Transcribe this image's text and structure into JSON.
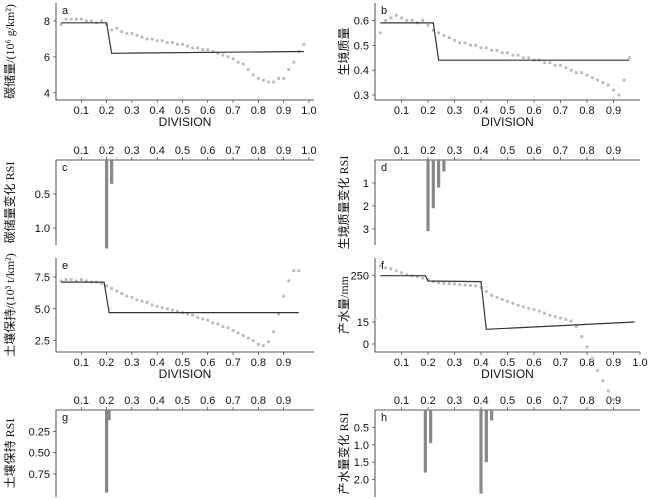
{
  "chart_data": [
    {
      "panel": "a",
      "type": "scatter-line",
      "xlabel": "DIVISION",
      "ylabel": "碳储量/(10⁶ g/km²)",
      "xticks": [
        "0.1",
        "0.2",
        "0.3",
        "0.4",
        "0.5",
        "0.6",
        "0.7",
        "0.8",
        "0.9",
        "1.0"
      ],
      "yticks": [
        "4",
        "6",
        "8"
      ],
      "ylim": [
        3.6,
        9.0
      ],
      "points": [
        [
          0.02,
          7.8
        ],
        [
          0.04,
          8.1
        ],
        [
          0.06,
          8.1
        ],
        [
          0.08,
          8.1
        ],
        [
          0.1,
          8.1
        ],
        [
          0.12,
          8.0
        ],
        [
          0.14,
          8.0
        ],
        [
          0.16,
          7.9
        ],
        [
          0.18,
          8.0
        ],
        [
          0.2,
          7.8
        ],
        [
          0.22,
          7.5
        ],
        [
          0.24,
          7.6
        ],
        [
          0.26,
          7.4
        ],
        [
          0.28,
          7.3
        ],
        [
          0.3,
          7.3
        ],
        [
          0.32,
          7.2
        ],
        [
          0.34,
          7.1
        ],
        [
          0.36,
          7.0
        ],
        [
          0.38,
          7.0
        ],
        [
          0.4,
          6.9
        ],
        [
          0.42,
          6.9
        ],
        [
          0.44,
          6.8
        ],
        [
          0.46,
          6.8
        ],
        [
          0.48,
          6.7
        ],
        [
          0.5,
          6.7
        ],
        [
          0.52,
          6.6
        ],
        [
          0.54,
          6.5
        ],
        [
          0.56,
          6.5
        ],
        [
          0.58,
          6.4
        ],
        [
          0.6,
          6.4
        ],
        [
          0.62,
          6.3
        ],
        [
          0.64,
          6.2
        ],
        [
          0.66,
          6.1
        ],
        [
          0.68,
          6.0
        ],
        [
          0.7,
          5.9
        ],
        [
          0.72,
          5.7
        ],
        [
          0.74,
          5.6
        ],
        [
          0.76,
          5.3
        ],
        [
          0.78,
          5.0
        ],
        [
          0.8,
          4.8
        ],
        [
          0.82,
          4.7
        ],
        [
          0.84,
          4.6
        ],
        [
          0.86,
          4.6
        ],
        [
          0.88,
          4.8
        ],
        [
          0.9,
          4.8
        ],
        [
          0.92,
          5.3
        ],
        [
          0.94,
          5.7
        ],
        [
          0.96,
          6.3
        ],
        [
          0.98,
          6.7
        ]
      ],
      "fit": [
        [
          0.02,
          7.9
        ],
        [
          0.2,
          7.9
        ],
        [
          0.22,
          6.2
        ],
        [
          0.98,
          6.3
        ]
      ]
    },
    {
      "panel": "b",
      "type": "scatter-line",
      "xlabel": "DIVISION",
      "ylabel": "生境质量",
      "xticks": [
        "0.1",
        "0.2",
        "0.3",
        "0.4",
        "0.5",
        "0.6",
        "0.7",
        "0.8",
        "0.9"
      ],
      "yticks": [
        "0.3",
        "0.4",
        "0.5",
        "0.6"
      ],
      "ylim": [
        0.28,
        0.67
      ],
      "points": [
        [
          0.02,
          0.55
        ],
        [
          0.04,
          0.6
        ],
        [
          0.06,
          0.61
        ],
        [
          0.08,
          0.62
        ],
        [
          0.1,
          0.61
        ],
        [
          0.12,
          0.6
        ],
        [
          0.14,
          0.6
        ],
        [
          0.16,
          0.59
        ],
        [
          0.18,
          0.6
        ],
        [
          0.2,
          0.58
        ],
        [
          0.22,
          0.56
        ],
        [
          0.24,
          0.55
        ],
        [
          0.26,
          0.54
        ],
        [
          0.28,
          0.53
        ],
        [
          0.3,
          0.52
        ],
        [
          0.32,
          0.51
        ],
        [
          0.34,
          0.51
        ],
        [
          0.36,
          0.5
        ],
        [
          0.38,
          0.5
        ],
        [
          0.4,
          0.49
        ],
        [
          0.42,
          0.49
        ],
        [
          0.44,
          0.48
        ],
        [
          0.46,
          0.48
        ],
        [
          0.48,
          0.47
        ],
        [
          0.5,
          0.47
        ],
        [
          0.52,
          0.46
        ],
        [
          0.54,
          0.46
        ],
        [
          0.56,
          0.45
        ],
        [
          0.58,
          0.45
        ],
        [
          0.6,
          0.44
        ],
        [
          0.62,
          0.44
        ],
        [
          0.64,
          0.43
        ],
        [
          0.66,
          0.43
        ],
        [
          0.68,
          0.42
        ],
        [
          0.7,
          0.42
        ],
        [
          0.72,
          0.41
        ],
        [
          0.74,
          0.4
        ],
        [
          0.76,
          0.39
        ],
        [
          0.78,
          0.39
        ],
        [
          0.8,
          0.38
        ],
        [
          0.82,
          0.37
        ],
        [
          0.84,
          0.36
        ],
        [
          0.86,
          0.35
        ],
        [
          0.88,
          0.34
        ],
        [
          0.9,
          0.32
        ],
        [
          0.92,
          0.3
        ],
        [
          0.94,
          0.36
        ],
        [
          0.96,
          0.45
        ]
      ],
      "fit": [
        [
          0.02,
          0.59
        ],
        [
          0.22,
          0.59
        ],
        [
          0.24,
          0.44
        ],
        [
          0.96,
          0.44
        ]
      ]
    },
    {
      "panel": "c",
      "type": "bar",
      "ylabel": "碳储量变化 RSI",
      "xticks": [
        "0.1",
        "0.2",
        "0.3",
        "0.4",
        "0.5",
        "0.6",
        "0.7",
        "0.8",
        "0.9",
        "1.0"
      ],
      "yticks": [
        "0.5",
        "1.0"
      ],
      "ylim": [
        0,
        1.25
      ],
      "bars": [
        [
          0.2,
          1.3
        ],
        [
          0.22,
          0.35
        ]
      ]
    },
    {
      "panel": "d",
      "type": "bar",
      "ylabel": "生境质量变化 RSI",
      "xticks": [
        "0.1",
        "0.2",
        "0.3",
        "0.4",
        "0.5",
        "0.6",
        "0.7",
        "0.8",
        "0.9"
      ],
      "yticks": [
        "1",
        "2",
        "3"
      ],
      "ylim": [
        0,
        3.7
      ],
      "bars": [
        [
          0.2,
          3.1
        ],
        [
          0.22,
          2.1
        ],
        [
          0.24,
          1.2
        ],
        [
          0.26,
          0.5
        ]
      ]
    },
    {
      "panel": "e",
      "type": "scatter-line",
      "xlabel": "DIVISION",
      "ylabel": "土壤保持/(10³ t/km²)",
      "xticks": [
        "0.1",
        "0.2",
        "0.3",
        "0.4",
        "0.5",
        "0.6",
        "0.7",
        "0.8",
        "0.9"
      ],
      "yticks": [
        "2.5",
        "5.0",
        "7.5"
      ],
      "ylim": [
        1.6,
        9.0
      ],
      "points": [
        [
          0.02,
          7.2
        ],
        [
          0.04,
          7.3
        ],
        [
          0.06,
          7.3
        ],
        [
          0.08,
          7.2
        ],
        [
          0.1,
          7.3
        ],
        [
          0.12,
          7.2
        ],
        [
          0.14,
          7.1
        ],
        [
          0.16,
          7.1
        ],
        [
          0.18,
          7.0
        ],
        [
          0.2,
          6.8
        ],
        [
          0.22,
          6.6
        ],
        [
          0.24,
          6.4
        ],
        [
          0.26,
          6.2
        ],
        [
          0.28,
          6.0
        ],
        [
          0.3,
          5.9
        ],
        [
          0.32,
          5.7
        ],
        [
          0.34,
          5.6
        ],
        [
          0.36,
          5.5
        ],
        [
          0.38,
          5.3
        ],
        [
          0.4,
          5.2
        ],
        [
          0.42,
          5.1
        ],
        [
          0.44,
          5.0
        ],
        [
          0.46,
          4.9
        ],
        [
          0.48,
          4.8
        ],
        [
          0.5,
          4.7
        ],
        [
          0.52,
          4.6
        ],
        [
          0.54,
          4.5
        ],
        [
          0.56,
          4.3
        ],
        [
          0.58,
          4.2
        ],
        [
          0.6,
          4.1
        ],
        [
          0.62,
          3.9
        ],
        [
          0.64,
          3.8
        ],
        [
          0.66,
          3.6
        ],
        [
          0.68,
          3.5
        ],
        [
          0.7,
          3.3
        ],
        [
          0.72,
          3.1
        ],
        [
          0.74,
          2.9
        ],
        [
          0.76,
          2.7
        ],
        [
          0.78,
          2.5
        ],
        [
          0.8,
          2.2
        ],
        [
          0.82,
          2.1
        ],
        [
          0.84,
          2.4
        ],
        [
          0.86,
          3.2
        ],
        [
          0.88,
          4.6
        ],
        [
          0.9,
          6.0
        ],
        [
          0.92,
          7.2
        ],
        [
          0.94,
          8.0
        ],
        [
          0.96,
          8.0
        ]
      ],
      "fit": [
        [
          0.02,
          7.1
        ],
        [
          0.19,
          7.1
        ],
        [
          0.21,
          4.7
        ],
        [
          0.96,
          4.7
        ]
      ]
    },
    {
      "panel": "f",
      "type": "scatter-line",
      "xlabel": "DIVISION",
      "ylabel": "产水量/mm",
      "xticks": [
        "0.1",
        "0.2",
        "0.3",
        "0.4",
        "0.5",
        "0.6",
        "0.7",
        "0.8",
        "0.9",
        "1.0"
      ],
      "yticks": [
        "0",
        "15",
        "250"
      ],
      "ylim": [
        -50,
        340
      ],
      "points": [
        [
          0.0,
          30
        ],
        [
          0.02,
          300
        ],
        [
          0.04,
          290
        ],
        [
          0.06,
          285
        ],
        [
          0.08,
          275
        ],
        [
          0.1,
          265
        ],
        [
          0.12,
          255
        ],
        [
          0.14,
          250
        ],
        [
          0.16,
          245
        ],
        [
          0.18,
          238
        ],
        [
          0.2,
          230
        ],
        [
          0.22,
          220
        ],
        [
          0.24,
          215
        ],
        [
          0.26,
          212
        ],
        [
          0.28,
          210
        ],
        [
          0.3,
          208
        ],
        [
          0.32,
          205
        ],
        [
          0.34,
          203
        ],
        [
          0.36,
          200
        ],
        [
          0.38,
          198
        ],
        [
          0.4,
          190
        ],
        [
          0.42,
          170
        ],
        [
          0.44,
          150
        ],
        [
          0.46,
          140
        ],
        [
          0.48,
          130
        ],
        [
          0.5,
          120
        ],
        [
          0.52,
          110
        ],
        [
          0.54,
          100
        ],
        [
          0.56,
          92
        ],
        [
          0.58,
          85
        ],
        [
          0.6,
          78
        ],
        [
          0.62,
          70
        ],
        [
          0.64,
          60
        ],
        [
          0.66,
          50
        ],
        [
          0.68,
          42
        ],
        [
          0.7,
          35
        ],
        [
          0.72,
          28
        ],
        [
          0.74,
          20
        ],
        [
          0.76,
          12
        ],
        [
          0.78,
          5
        ],
        [
          0.8,
          -2
        ],
        [
          0.82,
          -10
        ],
        [
          0.84,
          -18
        ],
        [
          0.86,
          -25
        ],
        [
          0.88,
          -32
        ],
        [
          0.9,
          -38
        ]
      ],
      "fit": [
        [
          0.02,
          250
        ],
        [
          0.19,
          250
        ],
        [
          0.2,
          223
        ],
        [
          0.4,
          220
        ],
        [
          0.42,
          10
        ],
        [
          0.98,
          15
        ]
      ]
    },
    {
      "panel": "g",
      "type": "bar",
      "ylabel": "土壤保持 RSI",
      "xticks": [
        "0.1",
        "0.2",
        "0.3",
        "0.4",
        "0.5",
        "0.6",
        "0.7",
        "0.8",
        "0.9"
      ],
      "yticks": [
        "0.25",
        "0.50",
        "0.75"
      ],
      "ylim": [
        0,
        1.02
      ],
      "bars": [
        [
          0.2,
          0.97
        ],
        [
          0.21,
          0.12
        ]
      ]
    },
    {
      "panel": "h",
      "type": "bar",
      "ylabel": "产水量变化 RSI",
      "xticks": [
        "0.1",
        "0.2",
        "0.3",
        "0.4",
        "0.5",
        "0.6",
        "0.7",
        "0.8",
        "0.9"
      ],
      "yticks": [
        "0.5",
        "1.0",
        "1.5",
        "2.0"
      ],
      "ylim": [
        0,
        2.5
      ],
      "bars": [
        [
          0.19,
          1.8
        ],
        [
          0.21,
          0.95
        ],
        [
          0.4,
          2.4
        ],
        [
          0.42,
          1.5
        ],
        [
          0.44,
          0.3
        ]
      ]
    }
  ]
}
